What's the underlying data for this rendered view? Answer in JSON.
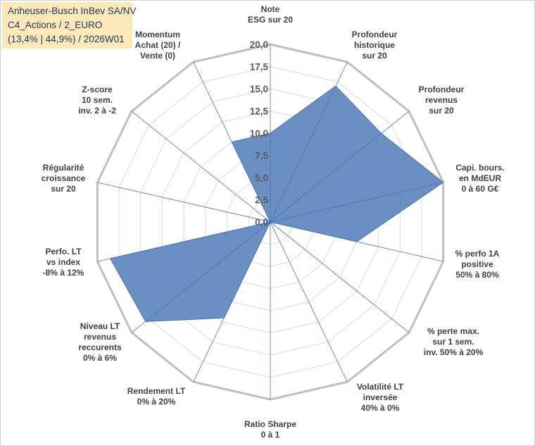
{
  "info": {
    "line1": "Anheuser-Busch InBev SA/NV",
    "line2": "C4_Actions / 2_EURO",
    "line3": "(13,4% | 44,9%) / 2026W01"
  },
  "colors": {
    "fill": "#5b83b9",
    "stroke": "#4a72b0",
    "grid": "#d9d9d9",
    "outer_grid": "#bfbfbf",
    "spoke": "#4472c4",
    "info_bg": "#fde9b8",
    "info_text": "#1f3864"
  },
  "chart_data": {
    "type": "radar",
    "title": "",
    "rmin": 0,
    "rmax": 20,
    "tick_step": 2.5,
    "tick_labels": [
      "0,0",
      "2,5",
      "5,0",
      "7,5",
      "10,0",
      "12,5",
      "15,0",
      "17,5",
      "20,0"
    ],
    "axes": [
      {
        "label": [
          "Note",
          "ESG sur 20"
        ],
        "value": 10
      },
      {
        "label": [
          "Profondeur",
          "historique",
          "sur 20"
        ],
        "value": 17
      },
      {
        "label": [
          "Profondeur",
          "revenus",
          "sur 20"
        ],
        "value": 16
      },
      {
        "label": [
          "Capi. bours.",
          "en MdEUR",
          "0 à 60 G€"
        ],
        "value": 20
      },
      {
        "label": [
          "% perfo 1A",
          "positive",
          "50% à 80%"
        ],
        "value": 10
      },
      {
        "label": [
          "% perte max.",
          "sur 1 sem.",
          "inv. 50% à 20%"
        ],
        "value": 0
      },
      {
        "label": [
          "Volatilité LT",
          "inversée",
          "40% à 0%"
        ],
        "value": 0
      },
      {
        "label": [
          "Ratio Sharpe",
          "0 à 1"
        ],
        "value": 0
      },
      {
        "label": [
          "Rendement LT",
          "0% à 20%"
        ],
        "value": 12
      },
      {
        "label": [
          "Niveau LT",
          "revenus",
          "reccurents",
          "0% à 6%"
        ],
        "value": 18
      },
      {
        "label": [
          "Perfo. LT",
          "vs index",
          "-8% à 12%"
        ],
        "value": 18.5
      },
      {
        "label": [
          "Régularité",
          "croissance",
          "sur 20"
        ],
        "value": 0
      },
      {
        "label": [
          "Z-score",
          "10 sem.",
          "inv. 2 à -2"
        ],
        "value": 0
      },
      {
        "label": [
          "Momentum",
          "Achat (20) /",
          "Vente (0)"
        ],
        "value": 10
      }
    ]
  }
}
